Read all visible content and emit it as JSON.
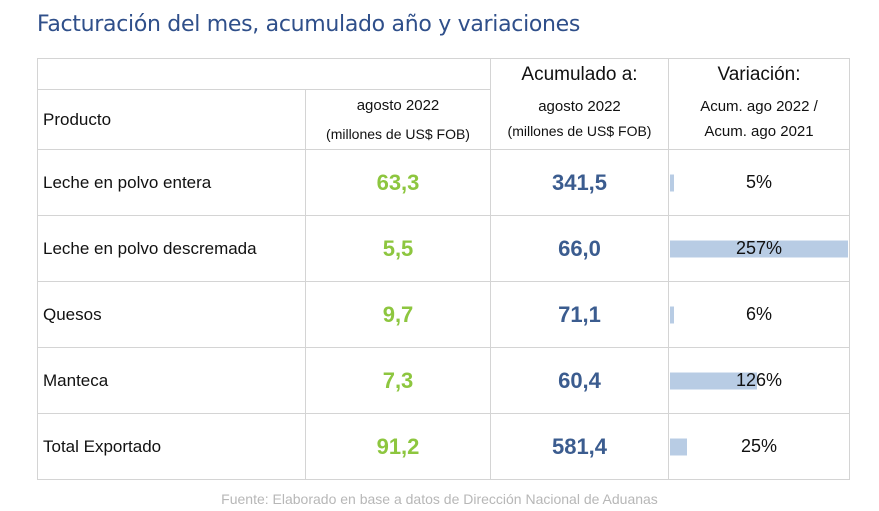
{
  "title": "Facturación del mes, acumulado año y variaciones",
  "header": {
    "acumulado_label": "Acumulado a:",
    "variacion_label": "Variación:",
    "producto_label": "Producto",
    "mes_line1": "agosto 2022",
    "mes_line2": "(millones de US$ FOB)",
    "acum_line1": "agosto 2022",
    "acum_line2": "(millones de US$ FOB)",
    "var_line1": "Acum. ago 2022 /",
    "var_line2": "Acum. ago 2021"
  },
  "rows": [
    {
      "producto": "Leche en polvo entera",
      "mes": "63,3",
      "acumulado": "341,5",
      "variacion": "5%",
      "variacion_value": 5
    },
    {
      "producto": "Leche en polvo descremada",
      "mes": "5,5",
      "acumulado": "66,0",
      "variacion": "257%",
      "variacion_value": 257
    },
    {
      "producto": "Quesos",
      "mes": "9,7",
      "acumulado": "71,1",
      "variacion": "6%",
      "variacion_value": 6
    },
    {
      "producto": "Manteca",
      "mes": "7,3",
      "acumulado": "60,4",
      "variacion": "126%",
      "variacion_value": 126
    },
    {
      "producto": "Total Exportado",
      "mes": "91,2",
      "acumulado": "581,4",
      "variacion": "25%",
      "variacion_value": 25
    }
  ],
  "bar_max": 257,
  "colors": {
    "mes": "#8dc63f",
    "acumulado": "#3b5c8f",
    "bar": "#b8cce4",
    "title": "#2f4f8a"
  },
  "footer": "Fuente: Elaborado en base a datos de Dirección Nacional de Aduanas"
}
